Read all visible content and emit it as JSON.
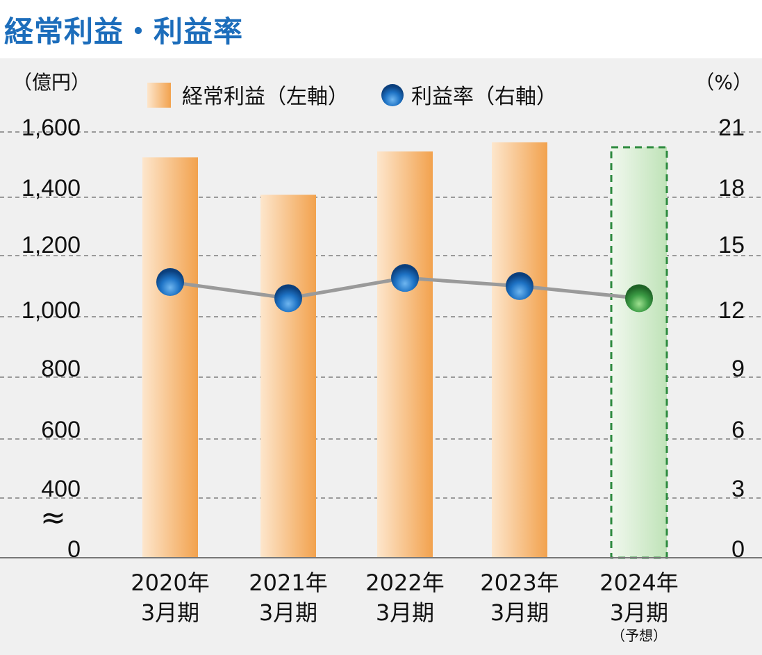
{
  "title": "経常利益・利益率",
  "chart_data": {
    "type": "bar",
    "y_left_unit": "（億円）",
    "y_right_unit": "（%）",
    "y_left_ticks": [
      "1,600",
      "1,400",
      "1,200",
      "1,000",
      "800",
      "600",
      "400",
      "0"
    ],
    "y_right_ticks": [
      "21",
      "18",
      "15",
      "12",
      "9",
      "6",
      "3",
      "0"
    ],
    "axis_break": "≈",
    "ylim_left": [
      0,
      1600
    ],
    "ylim_right": [
      0,
      21
    ],
    "categories": [
      {
        "line1": "2020年",
        "line2": "3月期",
        "note": ""
      },
      {
        "line1": "2021年",
        "line2": "3月期",
        "note": ""
      },
      {
        "line1": "2022年",
        "line2": "3月期",
        "note": ""
      },
      {
        "line1": "2023年",
        "line2": "3月期",
        "note": ""
      },
      {
        "line1": "2024年",
        "line2": "3月期",
        "note": "（予想）"
      }
    ],
    "series": [
      {
        "name": "経常利益（左軸）",
        "type": "bar",
        "axis": "left",
        "values": [
          1517,
          1394,
          1536,
          1566,
          1550
        ]
      },
      {
        "name": "利益率（右軸）",
        "type": "line",
        "axis": "right",
        "values": [
          13.6,
          12.8,
          13.8,
          13.4,
          12.8
        ]
      }
    ],
    "forecast_index": 4,
    "colors": {
      "bar_light": "#fde6cc",
      "bar_dark": "#f2a24e",
      "forecast_light": "#f1f8ee",
      "forecast_dark": "#bfe3b8",
      "forecast_border": "#2d8a3e",
      "point_blue": "#0d4f95",
      "point_green": "#2f8a3b",
      "line": "#9a9a9a",
      "grid": "#9a9a9a"
    }
  }
}
